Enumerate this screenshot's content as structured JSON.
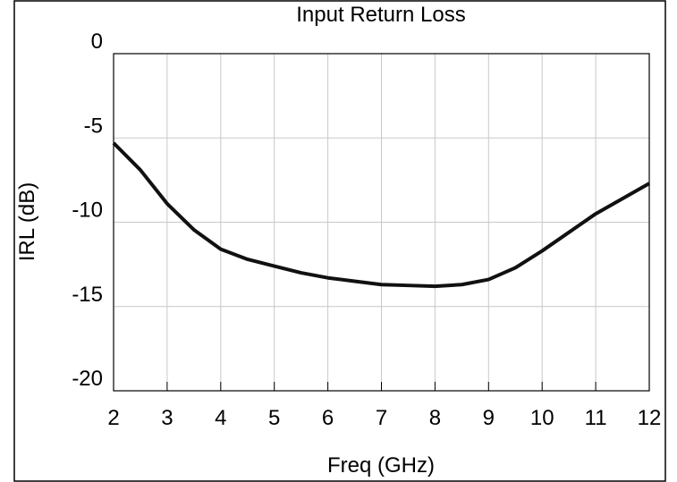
{
  "chart_data": {
    "type": "line",
    "title": "Input Return Loss",
    "x_label": "Freq (GHz)",
    "y_label": "IRL (dB)",
    "x": [
      2,
      2.5,
      3,
      3.5,
      4,
      4.5,
      5,
      5.5,
      6,
      6.5,
      7,
      7.5,
      8,
      8.5,
      9,
      9.5,
      10,
      10.5,
      11,
      11.5,
      12
    ],
    "series": [
      {
        "name": "IRL",
        "color": "#111111",
        "values": [
          -5.3,
          -6.9,
          -8.9,
          -10.45,
          -11.6,
          -12.2,
          -12.6,
          -13.0,
          -13.3,
          -13.5,
          -13.7,
          -13.75,
          -13.8,
          -13.7,
          -13.4,
          -12.7,
          -11.7,
          -10.6,
          -9.5,
          -8.6,
          -7.7
        ]
      }
    ],
    "xlim": [
      2,
      12
    ],
    "xticks": [
      2,
      3,
      4,
      5,
      6,
      7,
      8,
      9,
      10,
      11,
      12
    ],
    "ylim": [
      -20,
      0
    ],
    "yticks": [
      -20,
      -15,
      -10,
      -5,
      0
    ],
    "grid": true
  }
}
